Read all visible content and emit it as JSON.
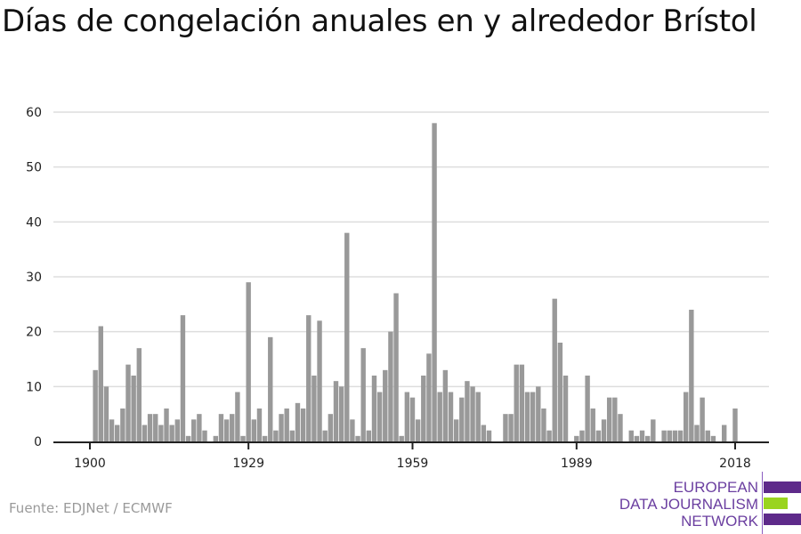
{
  "title": "Días de congelación anuales en y alrededor Brístol",
  "source": "Fuente: EDJNet / ECMWF",
  "logo": {
    "line1": "EUROPEAN",
    "line2": "DATA JOURNALISM",
    "line3": "NETWORK",
    "purple": "#5e2a8a",
    "green": "#9ad41f"
  },
  "chart_data": {
    "type": "bar",
    "title": "Días de congelación anuales en y alrededor Brístol",
    "xlabel": "",
    "ylabel": "",
    "ylim": [
      0,
      60
    ],
    "yticks": [
      "0",
      "10",
      "20",
      "30",
      "40",
      "50",
      "60"
    ],
    "xticks": [
      "1900",
      "1929",
      "1959",
      "1989",
      "2018"
    ],
    "x_start": 1900,
    "x_end": 2018,
    "bar_color": "#999999",
    "grid": true,
    "values": [
      0,
      13,
      21,
      10,
      4,
      3,
      6,
      14,
      12,
      17,
      3,
      5,
      5,
      3,
      6,
      3,
      4,
      23,
      1,
      4,
      5,
      2,
      0,
      1,
      5,
      4,
      5,
      9,
      1,
      29,
      4,
      6,
      1,
      19,
      2,
      5,
      6,
      2,
      7,
      6,
      23,
      12,
      22,
      2,
      5,
      11,
      10,
      38,
      4,
      1,
      17,
      2,
      12,
      9,
      13,
      20,
      27,
      1,
      9,
      8,
      4,
      12,
      16,
      58,
      9,
      13,
      9,
      4,
      8,
      11,
      10,
      9,
      3,
      2,
      0,
      0,
      5,
      5,
      14,
      14,
      9,
      9,
      10,
      6,
      2,
      26,
      18,
      12,
      0,
      1,
      2,
      12,
      6,
      2,
      4,
      8,
      8,
      5,
      0,
      2,
      1,
      2,
      1,
      4,
      0,
      2,
      2,
      2,
      2,
      9,
      24,
      3,
      8,
      2,
      1,
      0,
      3,
      0,
      6
    ]
  }
}
